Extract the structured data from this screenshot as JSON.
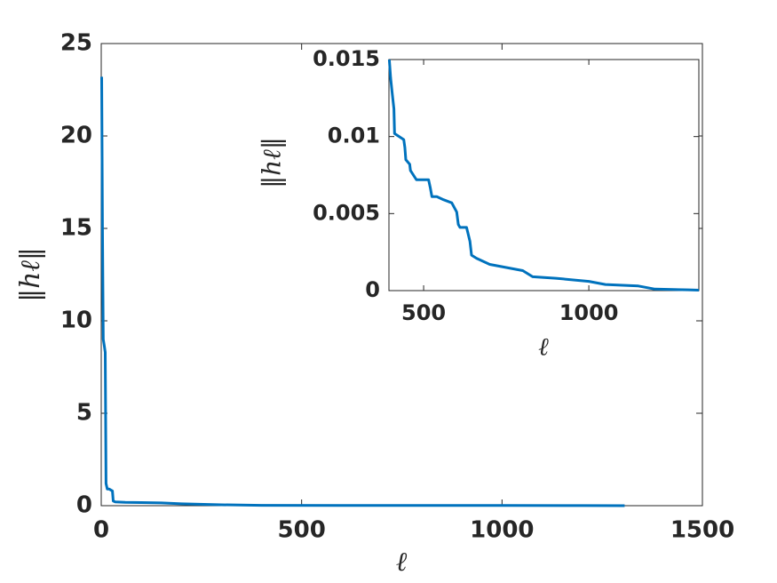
{
  "chart_data": [
    {
      "type": "line",
      "x_label": "ℓ",
      "y_label": "‖hℓ‖",
      "xlim": [
        0,
        1500
      ],
      "ylim": [
        0,
        25
      ],
      "xticks": [
        0,
        500,
        1000,
        1500
      ],
      "yticks": [
        0,
        5,
        10,
        15,
        20,
        25
      ],
      "series": [
        {
          "color": "#0072bd",
          "x": [
            1,
            3,
            5,
            8,
            10,
            12,
            15,
            20,
            28,
            30,
            35,
            60,
            100,
            150,
            200,
            300,
            400,
            600,
            800,
            1000,
            1200,
            1306
          ],
          "values": [
            23.2,
            15,
            9,
            8.6,
            8.3,
            1.2,
            0.9,
            0.9,
            0.8,
            0.25,
            0.2,
            0.18,
            0.17,
            0.15,
            0.1,
            0.05,
            0.02,
            0.01,
            0.01,
            0.01,
            0.005,
            0
          ]
        }
      ]
    },
    {
      "type": "line",
      "x_label": "ℓ",
      "y_label": "‖hℓ‖",
      "xlim": [
        395,
        1333
      ],
      "ylim": [
        0,
        0.015
      ],
      "xticks": [
        500,
        1000
      ],
      "yticks": [
        0,
        0.005,
        0.01,
        0.015
      ],
      "series": [
        {
          "color": "#0072bd",
          "x": [
            396,
            400,
            405,
            410,
            412,
            440,
            443,
            446,
            458,
            460,
            475,
            478,
            515,
            520,
            525,
            540,
            560,
            585,
            590,
            600,
            605,
            610,
            630,
            640,
            645,
            660,
            700,
            800,
            830,
            900,
            1000,
            1050,
            1150,
            1200,
            1300,
            1333
          ],
          "values": [
            0.015,
            0.0138,
            0.0128,
            0.0118,
            0.0102,
            0.0098,
            0.0093,
            0.0085,
            0.0082,
            0.0078,
            0.0073,
            0.0072,
            0.0072,
            0.0067,
            0.0061,
            0.0061,
            0.0059,
            0.0057,
            0.0055,
            0.0051,
            0.0043,
            0.0041,
            0.0041,
            0.0032,
            0.0023,
            0.0021,
            0.0017,
            0.0013,
            0.0009,
            0.0008,
            0.0006,
            0.0004,
            0.0003,
            0.0001,
            5e-05,
            3e-05
          ]
        }
      ]
    }
  ]
}
